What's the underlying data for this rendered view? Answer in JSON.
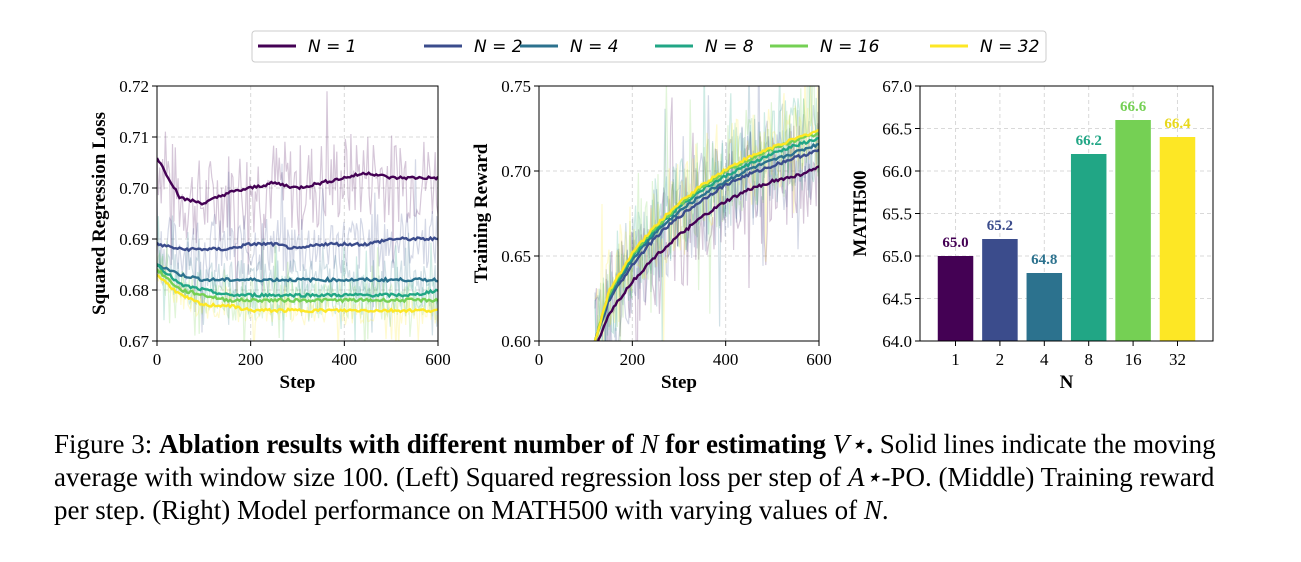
{
  "legend": [
    {
      "label": "N = 1",
      "color": "#440154"
    },
    {
      "label": "N = 2",
      "color": "#3b4c8c"
    },
    {
      "label": "N = 4",
      "color": "#2c728e"
    },
    {
      "label": "N = 8",
      "color": "#21a685"
    },
    {
      "label": "N = 16",
      "color": "#75d054"
    },
    {
      "label": "N = 32",
      "color": "#fde725"
    }
  ],
  "chart_data": [
    {
      "type": "line",
      "panel": "left",
      "xlabel": "Step",
      "ylabel": "Squared Regression Loss",
      "xlim": [
        0,
        600
      ],
      "ylim": [
        0.67,
        0.72
      ],
      "xticks": [
        "0",
        "200",
        "400",
        "600"
      ],
      "yticks": [
        "0.67",
        "0.68",
        "0.69",
        "0.70",
        "0.71",
        "0.72"
      ],
      "grid": true,
      "x": [
        0,
        50,
        100,
        150,
        200,
        250,
        300,
        350,
        400,
        450,
        500,
        550,
        600
      ],
      "series": [
        {
          "name": "N = 1",
          "values": [
            0.706,
            0.698,
            0.697,
            0.699,
            0.7,
            0.701,
            0.7,
            0.701,
            0.702,
            0.703,
            0.702,
            0.702,
            0.702
          ]
        },
        {
          "name": "N = 2",
          "values": [
            0.689,
            0.688,
            0.688,
            0.688,
            0.689,
            0.689,
            0.688,
            0.689,
            0.689,
            0.689,
            0.69,
            0.69,
            0.69
          ]
        },
        {
          "name": "N = 4",
          "values": [
            0.685,
            0.683,
            0.682,
            0.682,
            0.682,
            0.682,
            0.682,
            0.682,
            0.682,
            0.682,
            0.682,
            0.682,
            0.682
          ]
        },
        {
          "name": "N = 8",
          "values": [
            0.685,
            0.681,
            0.68,
            0.679,
            0.679,
            0.679,
            0.679,
            0.679,
            0.679,
            0.679,
            0.679,
            0.679,
            0.68
          ]
        },
        {
          "name": "N = 16",
          "values": [
            0.684,
            0.68,
            0.679,
            0.678,
            0.678,
            0.678,
            0.678,
            0.678,
            0.678,
            0.678,
            0.678,
            0.678,
            0.678
          ]
        },
        {
          "name": "N = 32",
          "values": [
            0.683,
            0.679,
            0.677,
            0.677,
            0.676,
            0.676,
            0.676,
            0.676,
            0.676,
            0.676,
            0.676,
            0.676,
            0.676
          ]
        }
      ]
    },
    {
      "type": "line",
      "panel": "middle",
      "xlabel": "Step",
      "ylabel": "Training Reward",
      "xlim": [
        0,
        600
      ],
      "ylim": [
        0.6,
        0.75
      ],
      "xticks": [
        "0",
        "200",
        "400",
        "600"
      ],
      "yticks": [
        "0.60",
        "0.65",
        "0.70",
        "0.75"
      ],
      "grid": true,
      "x": [
        120,
        150,
        200,
        250,
        300,
        350,
        400,
        450,
        500,
        550,
        600
      ],
      "series": [
        {
          "name": "N = 1",
          "values": [
            0.595,
            0.616,
            0.635,
            0.65,
            0.662,
            0.673,
            0.682,
            0.689,
            0.694,
            0.697,
            0.702
          ]
        },
        {
          "name": "N = 2",
          "values": [
            0.6,
            0.624,
            0.645,
            0.661,
            0.673,
            0.683,
            0.692,
            0.698,
            0.703,
            0.708,
            0.712
          ]
        },
        {
          "name": "N = 4",
          "values": [
            0.6,
            0.626,
            0.648,
            0.664,
            0.676,
            0.686,
            0.694,
            0.701,
            0.706,
            0.711,
            0.716
          ]
        },
        {
          "name": "N = 8",
          "values": [
            0.6,
            0.628,
            0.65,
            0.666,
            0.679,
            0.689,
            0.697,
            0.704,
            0.71,
            0.715,
            0.719
          ]
        },
        {
          "name": "N = 16",
          "values": [
            0.6,
            0.628,
            0.651,
            0.667,
            0.68,
            0.691,
            0.7,
            0.707,
            0.713,
            0.718,
            0.722
          ]
        },
        {
          "name": "N = 32",
          "values": [
            0.6,
            0.629,
            0.652,
            0.668,
            0.681,
            0.692,
            0.701,
            0.708,
            0.714,
            0.719,
            0.724
          ]
        }
      ]
    },
    {
      "type": "bar",
      "panel": "right",
      "xlabel": "N",
      "ylabel": "MATH500",
      "ylim": [
        64.0,
        67.0
      ],
      "yticks": [
        "64.0",
        "64.5",
        "65.0",
        "65.5",
        "66.0",
        "66.5",
        "67.0"
      ],
      "grid": true,
      "categories": [
        "1",
        "2",
        "4",
        "8",
        "16",
        "32"
      ],
      "values": [
        65.0,
        65.2,
        64.8,
        66.2,
        66.6,
        66.4
      ],
      "value_labels": [
        "65.0",
        "65.2",
        "64.8",
        "66.2",
        "66.6",
        "66.4"
      ],
      "colors": [
        "#440154",
        "#3b4c8c",
        "#2c728e",
        "#21a685",
        "#75d054",
        "#fde725"
      ],
      "label_colors": [
        "#440154",
        "#3b4c8c",
        "#2c728e",
        "#21a685",
        "#75d054",
        "#e8d81c"
      ]
    }
  ],
  "caption": {
    "prefix": "Figure 3: ",
    "bold": "Ablation results with different number of ",
    "bold_math1": "N",
    "bold2": " for estimating ",
    "bold_math2": "V⋆",
    "bold_end": ".",
    "text1": " Solid lines indicate the moving average with window size 100. (Left) Squared regression loss per step of ",
    "math_a": "A⋆",
    "text2": "-PO. (Middle) Training reward per step. (Right) Model performance on MATH500 with varying values of ",
    "math_n": "N",
    "text3": "."
  }
}
